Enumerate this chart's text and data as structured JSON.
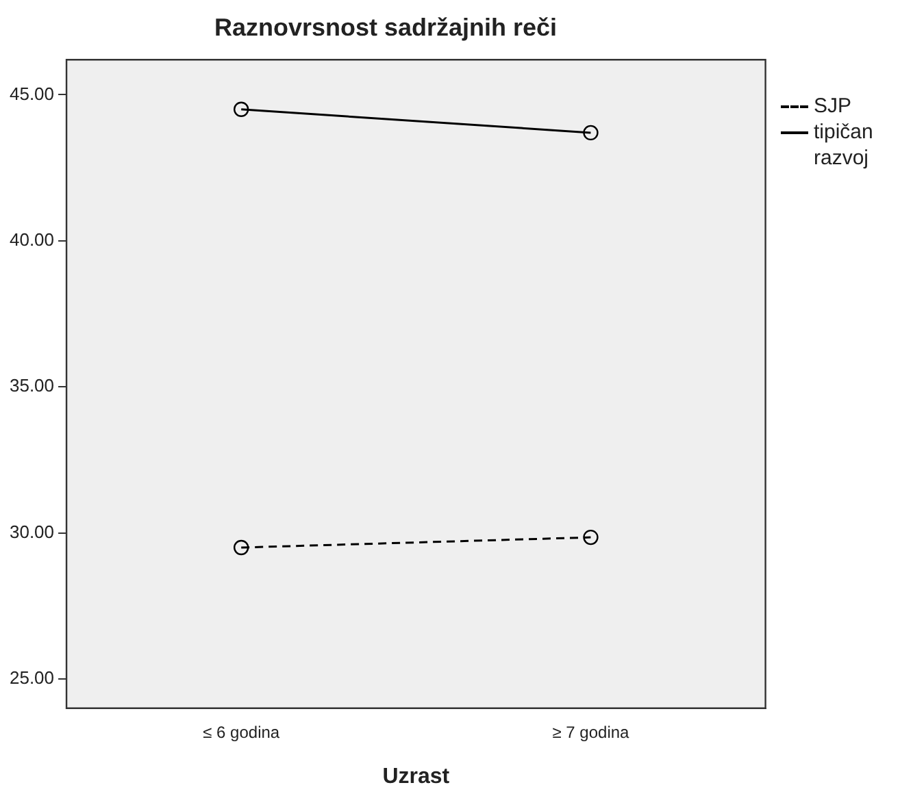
{
  "chart_data": {
    "type": "line",
    "title": "Raznovrsnost sadržajnih reči",
    "xlabel": "Uzrast",
    "categories": [
      "≤ 6 godina",
      "≥ 7 godina"
    ],
    "series": [
      {
        "name": "SJP",
        "color": "#000000",
        "line_style": "dashed",
        "values": [
          29.5,
          29.85
        ]
      },
      {
        "name": "tipičan razvoj",
        "color": "#000000",
        "line_style": "solid",
        "values": [
          44.5,
          43.7
        ]
      }
    ],
    "ylim": [
      24,
      46.2
    ],
    "yticks": [
      {
        "value": 25,
        "label": "25.00"
      },
      {
        "value": 30,
        "label": "30.00"
      },
      {
        "value": 35,
        "label": "35.00"
      },
      {
        "value": 40,
        "label": "40.00"
      },
      {
        "value": 45,
        "label": "45.00"
      }
    ],
    "grid": false,
    "legend": "right",
    "marker": "circle"
  }
}
